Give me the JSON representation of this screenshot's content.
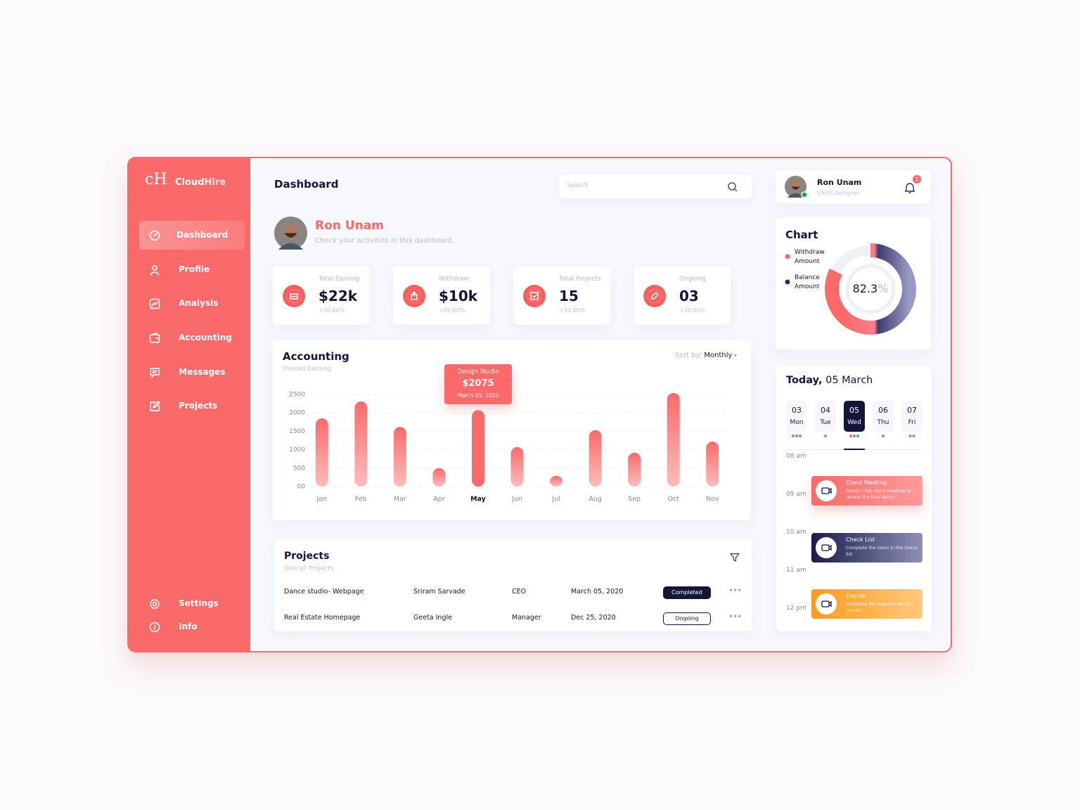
{
  "sidebar": {
    "logo_mark": "cH",
    "brand_a": "Cloud",
    "brand_b": "Hire",
    "nav": [
      "Dashboard",
      "Profile",
      "Analysis",
      "Accounting",
      "Messages",
      "Projects"
    ],
    "active": 0,
    "bottom": [
      "Settings",
      "Info"
    ]
  },
  "header": {
    "title": "Dashboard",
    "search_placeholder": "Search"
  },
  "user": {
    "name": "Ron Unam",
    "role": "UX/UI Designer",
    "notifications": 2
  },
  "greeting": {
    "name": "Ron Unam",
    "subtitle": "Check your activities in this dashboard."
  },
  "stats": [
    {
      "label": "Total Earning",
      "value": "$22k",
      "change": "+10.80%"
    },
    {
      "label": "Withdraw",
      "value": "$10k",
      "change": "+05.80%"
    },
    {
      "label": "Total Projects",
      "value": "15",
      "change": "+10.80%"
    },
    {
      "label": "Ongoing",
      "value": "03",
      "change": "+10.80%"
    }
  ],
  "accounting": {
    "type": "bar",
    "title": "Accounting",
    "subtitle": "Overall Earning",
    "sort_label": "Sort by:",
    "sort_value": "Monthly",
    "categories": [
      "Jan",
      "Feb",
      "Mar",
      "Apr",
      "May",
      "Jun",
      "Jul",
      "Aug",
      "Sep",
      "Oct",
      "Nov"
    ],
    "values": [
      1850,
      2310,
      1620,
      500,
      2075,
      1070,
      290,
      1530,
      920,
      2540,
      1220
    ],
    "color": "#fa6a6a",
    "highlight": 4,
    "ylim": [
      0,
      2600
    ],
    "yticks": [
      {
        "value": 0,
        "label": "00"
      },
      500,
      1000,
      1500,
      2000,
      2500
    ],
    "grid": true,
    "tooltip": {
      "title": "Design Studio",
      "amount": "$2075",
      "date": "March 05, 2020"
    }
  },
  "projects": {
    "title": "Projects",
    "subtitle": "Overall Projects",
    "rows": [
      [
        "Dance studio- Webpage",
        "Sriram Sarvade",
        "CEO",
        "March 05, 2020",
        "Completed"
      ],
      [
        "Real Estate Homepage",
        "Geeta Ingle",
        "Manager",
        "Dec 25, 2020",
        "Ongoing"
      ]
    ]
  },
  "donut": {
    "title": "Chart",
    "legend": [
      "Withdraw Amount",
      "Balance Amount"
    ],
    "value": 82.3,
    "unit": "%"
  },
  "schedule": {
    "title_a": "Today,",
    "title_b": "05 March",
    "days": [
      {
        "date": "03",
        "day": "Mon"
      },
      {
        "date": "04",
        "day": "Tue"
      },
      {
        "date": "05",
        "day": "Wed"
      },
      {
        "date": "06",
        "day": "Thu"
      },
      {
        "date": "07",
        "day": "Fri"
      }
    ],
    "selected": 2,
    "times": [
      "08 am",
      "09 am",
      "10 am",
      "11 am",
      "12 pm"
    ],
    "events": [
      {
        "title": "Client Meeting",
        "desc": "Design club client meeting to review the final deisgn"
      },
      {
        "title": "Check List",
        "desc": "Complete the tasks in the check list"
      },
      {
        "title": "Course",
        "desc": "Complete the ongoing design course"
      }
    ]
  }
}
